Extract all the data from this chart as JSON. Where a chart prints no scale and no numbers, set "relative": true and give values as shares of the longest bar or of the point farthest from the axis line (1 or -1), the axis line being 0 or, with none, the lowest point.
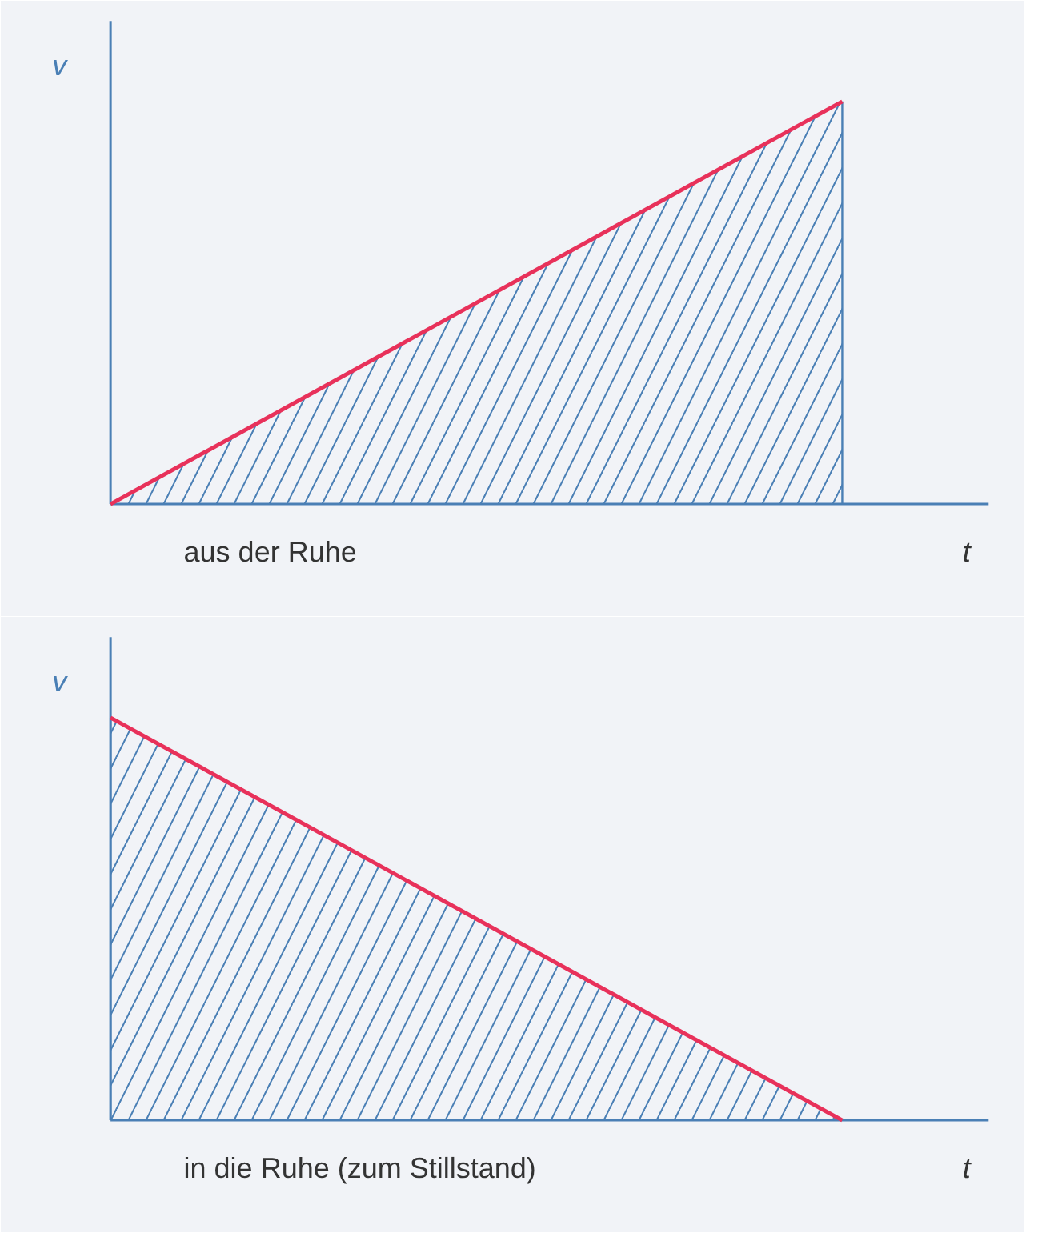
{
  "chart_data": [
    {
      "type": "area",
      "relative": true,
      "categories": [
        null,
        null
      ],
      "xlabel": "t",
      "ylabel": "v",
      "annotations": [
        "aus der Ruhe"
      ],
      "series": [
        {
          "color": "#e8315a",
          "values": [
            0,
            1
          ]
        }
      ]
    },
    {
      "type": "area",
      "relative": true,
      "categories": [
        null,
        null
      ],
      "xlabel": "t",
      "ylabel": "v",
      "annotations": [
        "in die Ruhe (zum Stillstand)"
      ],
      "series": [
        {
          "color": "#e8315a",
          "values": [
            1,
            0
          ]
        }
      ]
    }
  ]
}
